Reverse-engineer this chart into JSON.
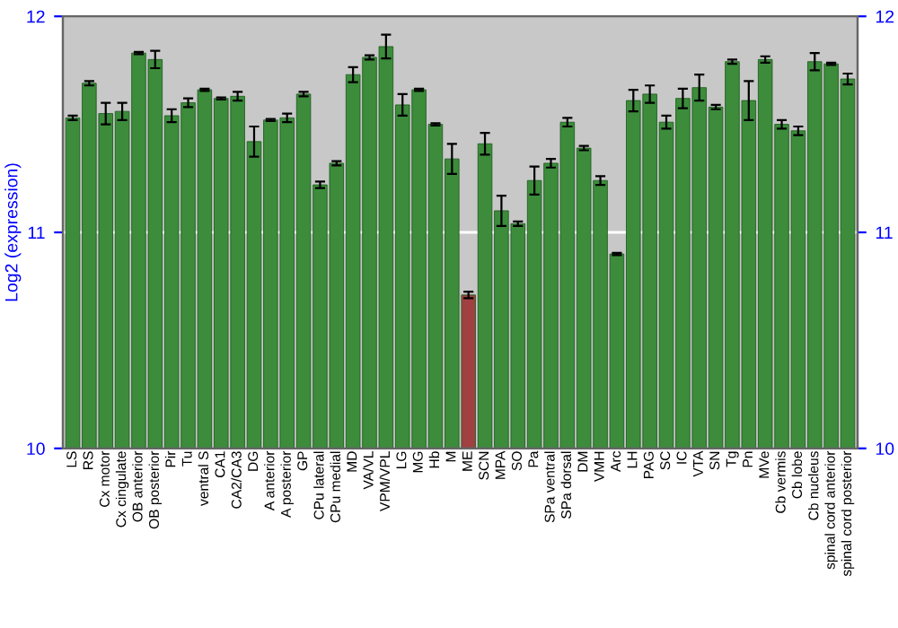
{
  "chart_data": {
    "type": "bar",
    "ylabel": "Log2 (expression)",
    "categories": [
      "LS",
      "RS",
      "Cx motor",
      "Cx cingulate",
      "OB anterior",
      "OB posterior",
      "Pir",
      "Tu",
      "ventral S",
      "CA1",
      "CA2/CA3",
      "DG",
      "A anterior",
      "A posterior",
      "GP",
      "CPu lateral",
      "CPu medial",
      "MD",
      "VA/VL",
      "VPM/VPL",
      "LG",
      "MG",
      "Hb",
      "M",
      "ME",
      "SCN",
      "MPA",
      "SO",
      "Pa",
      "SPa ventral",
      "SPa dorsal",
      "DM",
      "VMH",
      "Arc",
      "LH",
      "PAG",
      "SC",
      "IC",
      "VTA",
      "SN",
      "Tg",
      "Pn",
      "MVe",
      "Cb vermis",
      "Cb lobe",
      "Cb nucleus",
      "spinal cord anterior",
      "spinal cord posterior"
    ],
    "values": [
      11.53,
      11.69,
      11.55,
      11.56,
      11.83,
      11.8,
      11.54,
      11.6,
      11.66,
      11.62,
      11.63,
      11.42,
      11.52,
      11.53,
      11.64,
      11.22,
      11.32,
      11.73,
      11.81,
      11.86,
      11.59,
      11.66,
      11.5,
      11.34,
      10.71,
      11.41,
      11.1,
      11.04,
      11.24,
      11.32,
      11.51,
      11.39,
      11.24,
      10.9,
      11.61,
      11.64,
      11.51,
      11.62,
      11.67,
      11.58,
      11.79,
      11.61,
      11.8,
      11.5,
      11.47,
      11.79,
      11.78,
      11.71
    ],
    "errors": [
      0.01,
      0.01,
      0.05,
      0.04,
      0.005,
      0.04,
      0.03,
      0.02,
      0.005,
      0.005,
      0.02,
      0.07,
      0.005,
      0.02,
      0.01,
      0.015,
      0.01,
      0.035,
      0.01,
      0.055,
      0.05,
      0.005,
      0.005,
      0.07,
      0.015,
      0.05,
      0.07,
      0.01,
      0.065,
      0.02,
      0.02,
      0.01,
      0.02,
      0.005,
      0.05,
      0.04,
      0.03,
      0.045,
      0.06,
      0.01,
      0.01,
      0.09,
      0.015,
      0.02,
      0.02,
      0.04,
      0.005,
      0.025
    ],
    "colors": [
      "#2e9a2e",
      "#2e9a2e",
      "#2e9a2e",
      "#2e9a2e",
      "#2e9a2e",
      "#2e9a2e",
      "#2e9a2e",
      "#2e9a2e",
      "#2e9a2e",
      "#2e9a2e",
      "#2e9a2e",
      "#2e9a2e",
      "#2e9a2e",
      "#2e9a2e",
      "#2e9a2e",
      "#2e9a2e",
      "#2e9a2e",
      "#2e9a2e",
      "#2e9a2e",
      "#2e9a2e",
      "#2e9a2e",
      "#2e9a2e",
      "#2e9a2e",
      "#2e9a2e",
      "#b03030",
      "#2e9a2e",
      "#2e9a2e",
      "#2e9a2e",
      "#2e9a2e",
      "#2e9a2e",
      "#2e9a2e",
      "#2e9a2e",
      "#2e9a2e",
      "#2e9a2e",
      "#2e9a2e",
      "#2e9a2e",
      "#2e9a2e",
      "#2e9a2e",
      "#2e9a2e",
      "#2e9a2e",
      "#2e9a2e",
      "#2e9a2e",
      "#2e9a2e",
      "#2e9a2e",
      "#2e9a2e",
      "#2e9a2e",
      "#2e9a2e",
      "#2e9a2e"
    ],
    "ylim": [
      10,
      12
    ],
    "yticks": [
      10,
      11,
      12
    ],
    "y2lim": [
      10,
      12
    ],
    "y2ticks": [
      10,
      11,
      12
    ],
    "grid": "y"
  }
}
